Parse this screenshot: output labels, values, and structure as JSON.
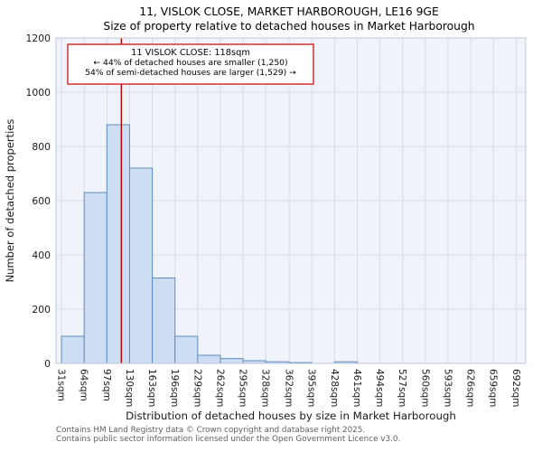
{
  "title": {
    "line1": "11, VISLOK CLOSE, MARKET HARBOROUGH, LE16 9GE",
    "line2": "Size of property relative to detached houses in Market Harborough"
  },
  "annotation": {
    "line1": "11 VISLOK CLOSE: 118sqm",
    "line2": "← 44% of detached houses are smaller (1,250)",
    "line3": "54% of semi-detached houses are larger (1,529) →"
  },
  "footer": {
    "line1": "Contains HM Land Registry data © Crown copyright and database right 2025.",
    "line2": "Contains public sector information licensed under the Open Government Licence v3.0."
  },
  "chart_data": {
    "type": "bar",
    "title": "11, VISLOK CLOSE, MARKET HARBOROUGH, LE16 9GE — Size of property relative to detached houses in Market Harborough",
    "xlabel": "Distribution of detached houses by size in Market Harborough",
    "ylabel": "Number of detached properties",
    "categories": [
      "31sqm",
      "64sqm",
      "97sqm",
      "130sqm",
      "163sqm",
      "196sqm",
      "229sqm",
      "262sqm",
      "295sqm",
      "328sqm",
      "362sqm",
      "395sqm",
      "428sqm",
      "461sqm",
      "494sqm",
      "527sqm",
      "560sqm",
      "593sqm",
      "626sqm",
      "659sqm",
      "692sqm"
    ],
    "values": [
      100,
      630,
      880,
      720,
      315,
      100,
      30,
      18,
      10,
      6,
      3,
      0,
      6,
      0,
      0,
      0,
      0,
      0,
      0,
      0
    ],
    "ylim": [
      0,
      1200
    ],
    "yticks": [
      0,
      200,
      400,
      600,
      800,
      1000,
      1200
    ],
    "grid": true,
    "legend": null,
    "marker": {
      "value": 118,
      "label": "11 VISLOK CLOSE: 118sqm",
      "color": "#bb0000"
    },
    "colors": {
      "bar_fill": "#cdddf2",
      "bar_edge": "#5f8dc3",
      "grid": "#d4dce9",
      "plot_bg": "#f0f4fa",
      "plot_border": "#bfc8d6",
      "annotation_border": "#cc0000"
    }
  }
}
